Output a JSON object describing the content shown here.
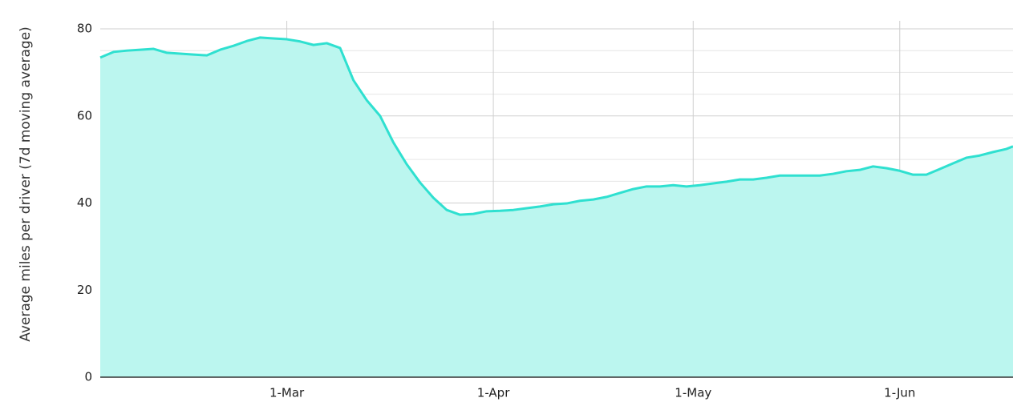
{
  "chart_data": {
    "type": "area",
    "ylabel": "Average miles per driver (7d moving average)",
    "x": [
      33,
      35,
      37,
      39,
      41,
      43,
      45,
      47,
      49,
      51,
      53,
      55,
      57,
      59,
      61,
      63,
      65,
      67,
      69,
      71,
      73,
      75,
      77,
      79,
      81,
      83,
      85,
      87,
      89,
      91,
      93,
      95,
      97,
      99,
      101,
      103,
      105,
      107,
      109,
      111,
      113,
      115,
      117,
      119,
      121,
      123,
      125,
      127,
      129,
      131,
      133,
      135,
      137,
      139,
      141,
      143,
      145,
      147,
      149,
      151,
      153,
      155,
      157,
      159,
      161,
      163,
      165,
      167,
      169,
      170
    ],
    "series": [
      {
        "name": "Average miles per driver",
        "color": "#2fe0d0",
        "fill": "#bbf6ef",
        "values": [
          73.4,
          74.7,
          75.0,
          75.2,
          75.4,
          74.5,
          74.3,
          74.1,
          73.9,
          75.2,
          76.1,
          77.2,
          78.0,
          77.8,
          77.6,
          77.1,
          76.3,
          76.7,
          75.6,
          68.2,
          63.6,
          60.0,
          53.9,
          48.9,
          44.7,
          41.2,
          38.4,
          37.3,
          37.5,
          38.1,
          38.2,
          38.4,
          38.8,
          39.2,
          39.7,
          39.9,
          40.5,
          40.8,
          41.4,
          42.3,
          43.2,
          43.8,
          43.8,
          44.1,
          43.8,
          44.1,
          44.5,
          44.9,
          45.4,
          45.4,
          45.8,
          46.3,
          46.3,
          46.3,
          46.3,
          46.7,
          47.3,
          47.6,
          48.4,
          48.0,
          47.4,
          46.5,
          46.5,
          47.8,
          49.1,
          50.4,
          50.9,
          51.7,
          52.4,
          53.0
        ]
      }
    ],
    "xlim": [
      33,
      170
    ],
    "xticks": [
      {
        "value": 61,
        "label": "1-Mar"
      },
      {
        "value": 92,
        "label": "1-Apr"
      },
      {
        "value": 122,
        "label": "1-May"
      },
      {
        "value": 153,
        "label": "1-Jun"
      }
    ],
    "ylim": [
      0,
      80
    ],
    "yticks": [
      0,
      20,
      40,
      60,
      80
    ],
    "minor_yticks": [
      5,
      10,
      15,
      25,
      30,
      35,
      45,
      50,
      55,
      65,
      70,
      75
    ],
    "grid": true
  }
}
